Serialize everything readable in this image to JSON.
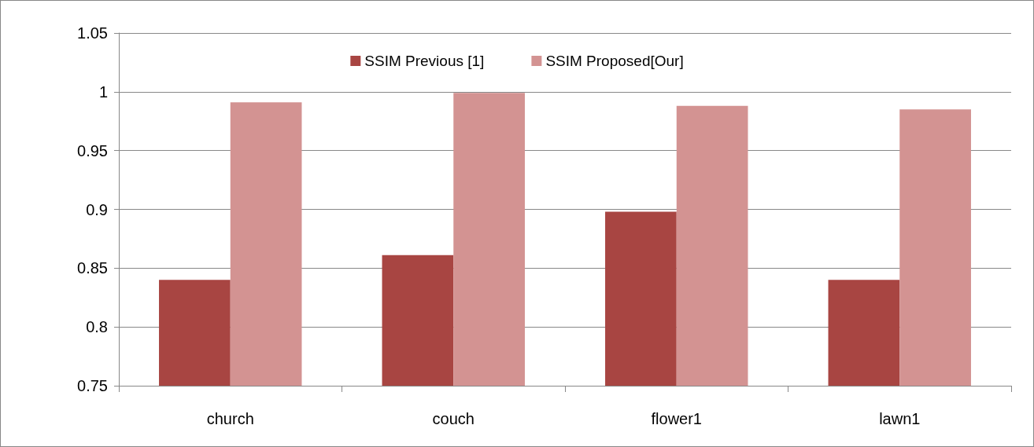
{
  "chart_data": {
    "type": "bar",
    "categories": [
      "church",
      "couch",
      "flower1",
      "lawn1"
    ],
    "series": [
      {
        "name": "SSIM Previous [1]",
        "color": "#a84542",
        "values": [
          0.84,
          0.861,
          0.898,
          0.84
        ]
      },
      {
        "name": "SSIM Proposed[Our]",
        "color": "#d39392",
        "values": [
          0.991,
          0.999,
          0.988,
          0.985
        ]
      }
    ],
    "ylim": [
      0.75,
      1.05
    ],
    "yticks": [
      0.75,
      0.8,
      0.85,
      0.9,
      0.95,
      1,
      1.05
    ],
    "grid": "y",
    "legend": "top"
  }
}
